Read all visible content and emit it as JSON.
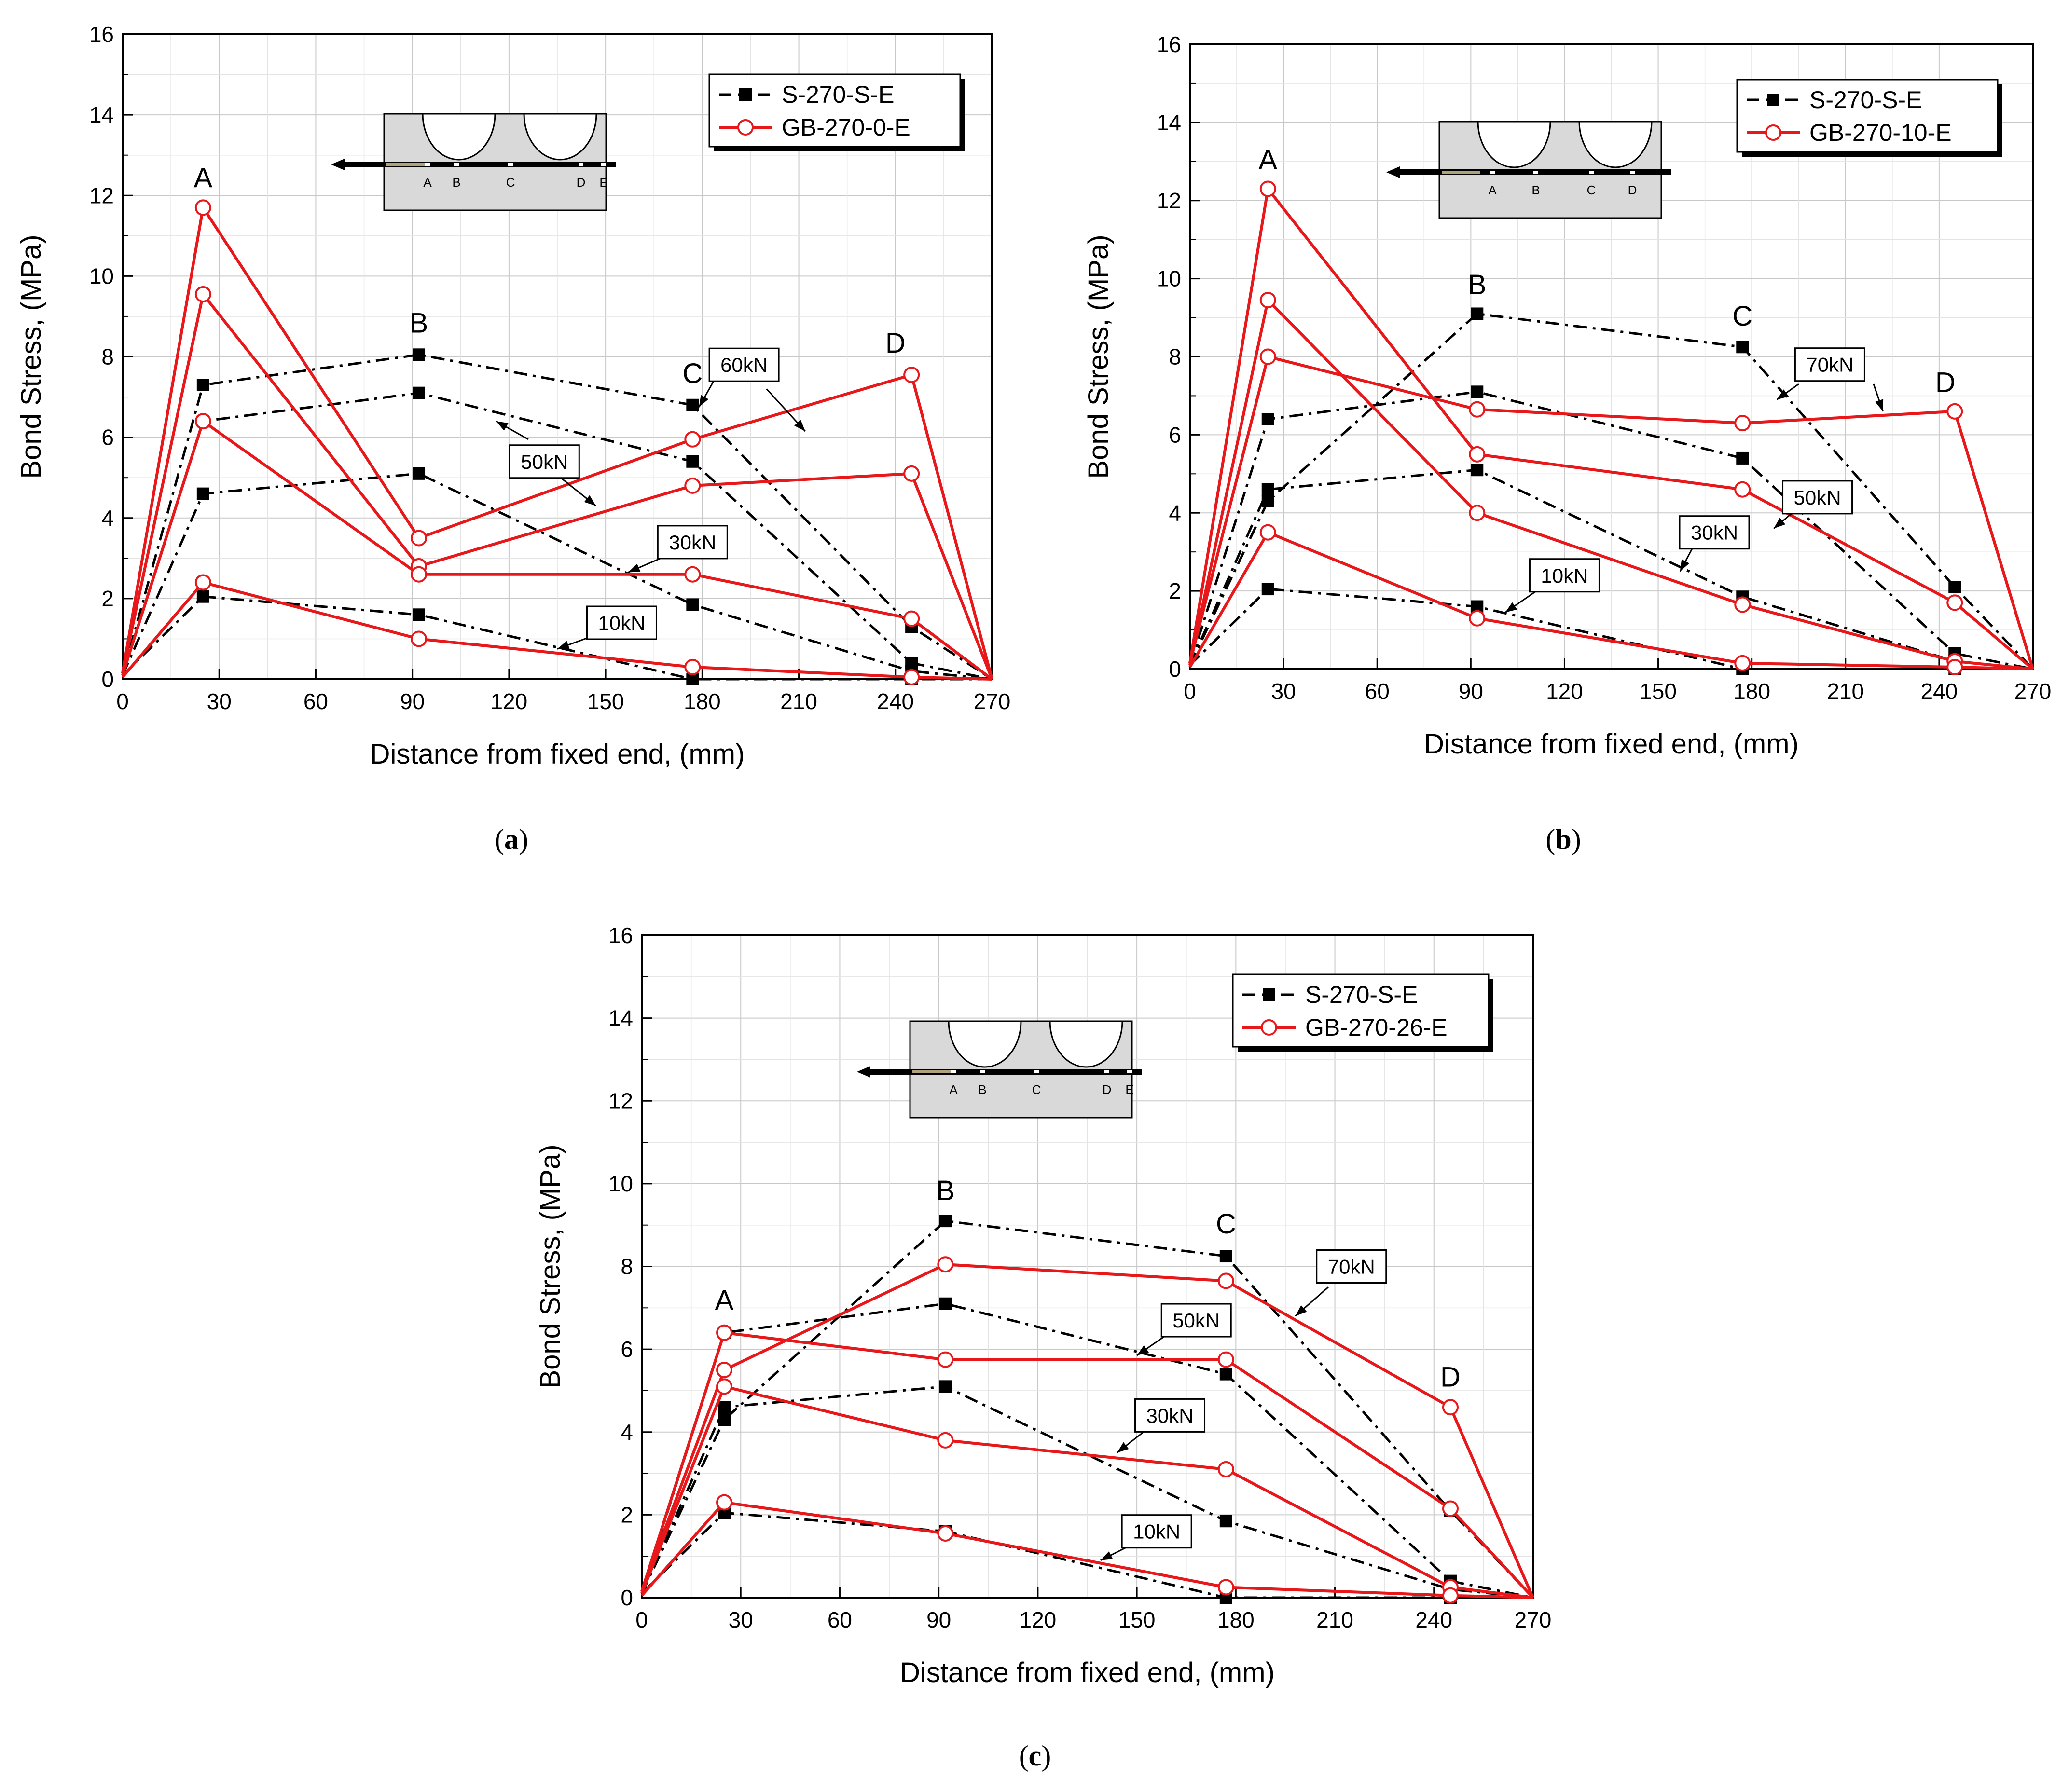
{
  "colors": {
    "reference_series": "#000000",
    "gfrp_series": "#e8171a",
    "grid": "#c8c8c8",
    "inset_fill": "#d9d9d9"
  },
  "chart_data": [
    {
      "panel": "a",
      "type": "line",
      "caption": "a",
      "xlabel": "Distance from fixed end, (mm)",
      "ylabel": "Bond Stress, (MPa)",
      "xlim": [
        0,
        270
      ],
      "ylim": [
        0,
        16
      ],
      "xticks": [
        0,
        30,
        60,
        90,
        120,
        150,
        180,
        210,
        240,
        270
      ],
      "yticks": [
        0,
        2,
        4,
        6,
        8,
        10,
        12,
        14,
        16
      ],
      "grid": true,
      "legend_position": "top-right",
      "legend": [
        "S-270-S-E",
        "GB-270-0-E"
      ],
      "inset_labels": [
        "A",
        "B",
        "C",
        "D",
        "E"
      ],
      "point_labels": [
        {
          "text": "A",
          "x": 25,
          "y": 12.2
        },
        {
          "text": "B",
          "x": 92,
          "y": 8.6
        },
        {
          "text": "C",
          "x": 177,
          "y": 7.35
        },
        {
          "text": "D",
          "x": 240,
          "y": 8.1
        }
      ],
      "annotations": [
        {
          "text": "60kN",
          "x": 193,
          "y": 7.8,
          "arrows": [
            {
              "x1": 185,
              "y1": 7.6,
              "x2": 179,
              "y2": 6.75
            },
            {
              "x1": 200,
              "y1": 7.2,
              "x2": 212,
              "y2": 6.15
            }
          ]
        },
        {
          "text": "50kN",
          "x": 131,
          "y": 5.4,
          "arrows": [
            {
              "x1": 126,
              "y1": 5.95,
              "x2": 116,
              "y2": 6.4
            },
            {
              "x1": 136,
              "y1": 5.0,
              "x2": 147,
              "y2": 4.3
            }
          ]
        },
        {
          "text": "30kN",
          "x": 177,
          "y": 3.4,
          "arrows": [
            {
              "x1": 170,
              "y1": 3.1,
              "x2": 157,
              "y2": 2.65
            }
          ]
        },
        {
          "text": "10kN",
          "x": 155,
          "y": 1.4,
          "arrows": [
            {
              "x1": 147,
              "y1": 1.1,
              "x2": 135,
              "y2": 0.75
            }
          ]
        }
      ],
      "series": [
        {
          "name": "S-270-S-E 60kN",
          "group": "S-270-S-E",
          "x": [
            0,
            25,
            92,
            177,
            245,
            270
          ],
          "y": [
            0.1,
            7.3,
            8.05,
            6.8,
            1.3,
            0
          ]
        },
        {
          "name": "S-270-S-E 50kN",
          "group": "S-270-S-E",
          "x": [
            0,
            25,
            92,
            177,
            245,
            270
          ],
          "y": [
            0.1,
            6.4,
            7.1,
            5.4,
            0.4,
            0
          ]
        },
        {
          "name": "S-270-S-E 30kN",
          "group": "S-270-S-E",
          "x": [
            0,
            25,
            92,
            177,
            245,
            270
          ],
          "y": [
            0.1,
            4.6,
            5.1,
            1.85,
            0.2,
            0
          ]
        },
        {
          "name": "S-270-S-E 10kN",
          "group": "S-270-S-E",
          "x": [
            0,
            25,
            92,
            177,
            245,
            270
          ],
          "y": [
            0.1,
            2.05,
            1.6,
            0,
            0,
            0
          ]
        },
        {
          "name": "GB-270-0-E 60kN",
          "group": "GB-270-0-E",
          "x": [
            0,
            25,
            92,
            177,
            245,
            270
          ],
          "y": [
            0.15,
            11.7,
            3.5,
            5.95,
            7.55,
            0
          ]
        },
        {
          "name": "GB-270-0-E 50kN",
          "group": "GB-270-0-E",
          "x": [
            0,
            25,
            92,
            177,
            245,
            270
          ],
          "y": [
            0.15,
            9.55,
            2.8,
            4.8,
            5.1,
            0
          ]
        },
        {
          "name": "GB-270-0-E 30kN",
          "group": "GB-270-0-E",
          "x": [
            0,
            25,
            92,
            177,
            245,
            270
          ],
          "y": [
            0.1,
            6.4,
            2.6,
            2.6,
            1.5,
            0
          ]
        },
        {
          "name": "GB-270-0-E 10kN",
          "group": "GB-270-0-E",
          "x": [
            0,
            25,
            92,
            177,
            245,
            270
          ],
          "y": [
            0.05,
            2.4,
            1.0,
            0.3,
            0.05,
            0
          ]
        }
      ]
    },
    {
      "panel": "b",
      "type": "line",
      "caption": "b",
      "xlabel": "Distance from fixed end, (mm)",
      "ylabel": "Bond Stress, (MPa)",
      "xlim": [
        0,
        270
      ],
      "ylim": [
        0,
        16
      ],
      "xticks": [
        0,
        30,
        60,
        90,
        120,
        150,
        180,
        210,
        240,
        270
      ],
      "yticks": [
        0,
        2,
        4,
        6,
        8,
        10,
        12,
        14,
        16
      ],
      "grid": true,
      "legend_position": "top-right",
      "legend": [
        "S-270-S-E",
        "GB-270-10-E"
      ],
      "inset_labels": [
        "A",
        "B",
        "C",
        "D"
      ],
      "point_labels": [
        {
          "text": "A",
          "x": 25,
          "y": 12.8
        },
        {
          "text": "B",
          "x": 92,
          "y": 9.6
        },
        {
          "text": "C",
          "x": 177,
          "y": 8.8
        },
        {
          "text": "D",
          "x": 242,
          "y": 7.1
        }
      ],
      "annotations": [
        {
          "text": "70kN",
          "x": 205,
          "y": 7.8,
          "arrows": [
            {
              "x1": 195,
              "y1": 7.3,
              "x2": 188,
              "y2": 6.9
            },
            {
              "x1": 219,
              "y1": 7.3,
              "x2": 222,
              "y2": 6.6
            }
          ]
        },
        {
          "text": "50kN",
          "x": 201,
          "y": 4.4,
          "arrows": [
            {
              "x1": 193,
              "y1": 4.0,
              "x2": 187,
              "y2": 3.6
            }
          ]
        },
        {
          "text": "30kN",
          "x": 168,
          "y": 3.5,
          "arrows": [
            {
              "x1": 161,
              "y1": 3.1,
              "x2": 157,
              "y2": 2.5
            }
          ]
        },
        {
          "text": "10kN",
          "x": 120,
          "y": 2.4,
          "arrows": [
            {
              "x1": 111,
              "y1": 2.0,
              "x2": 101,
              "y2": 1.45
            }
          ]
        }
      ],
      "series": [
        {
          "name": "S-270-S-E 70kN",
          "group": "S-270-S-E",
          "x": [
            0,
            25,
            92,
            177,
            245,
            270
          ],
          "y": [
            0.1,
            4.3,
            9.1,
            8.25,
            2.1,
            0
          ]
        },
        {
          "name": "S-270-S-E 50kN",
          "group": "S-270-S-E",
          "x": [
            0,
            25,
            92,
            177,
            245,
            270
          ],
          "y": [
            0.1,
            6.4,
            7.1,
            5.4,
            0.4,
            0
          ]
        },
        {
          "name": "S-270-S-E 30kN",
          "group": "S-270-S-E",
          "x": [
            0,
            25,
            92,
            177,
            245,
            270
          ],
          "y": [
            0.1,
            4.6,
            5.1,
            1.85,
            0.2,
            0
          ]
        },
        {
          "name": "S-270-S-E 10kN",
          "group": "S-270-S-E",
          "x": [
            0,
            25,
            92,
            177,
            245,
            270
          ],
          "y": [
            0.1,
            2.05,
            1.6,
            0,
            0,
            0
          ]
        },
        {
          "name": "GB-270-10-E 70kN",
          "group": "GB-270-10-E",
          "x": [
            0,
            25,
            92,
            177,
            245,
            270
          ],
          "y": [
            0.15,
            8.0,
            6.65,
            6.3,
            6.6,
            0
          ]
        },
        {
          "name": "GB-270-10-E 50kN",
          "group": "GB-270-10-E",
          "x": [
            0,
            25,
            92,
            177,
            245,
            270
          ],
          "y": [
            0.15,
            12.3,
            5.5,
            4.6,
            1.7,
            0
          ]
        },
        {
          "name": "GB-270-10-E 30kN",
          "group": "GB-270-10-E",
          "x": [
            0,
            25,
            92,
            177,
            245,
            270
          ],
          "y": [
            0.1,
            9.45,
            4.0,
            1.65,
            0.2,
            0
          ]
        },
        {
          "name": "GB-270-10-E 10kN",
          "group": "GB-270-10-E",
          "x": [
            0,
            25,
            92,
            177,
            245,
            270
          ],
          "y": [
            0.05,
            3.5,
            1.3,
            0.15,
            0.05,
            0
          ]
        }
      ]
    },
    {
      "panel": "c",
      "type": "line",
      "caption": "c",
      "xlabel": "Distance from fixed end, (mm)",
      "ylabel": "Bond Stress, (MPa)",
      "xlim": [
        0,
        270
      ],
      "ylim": [
        0,
        16
      ],
      "xticks": [
        0,
        30,
        60,
        90,
        120,
        150,
        180,
        210,
        240,
        270
      ],
      "yticks": [
        0,
        2,
        4,
        6,
        8,
        10,
        12,
        14,
        16
      ],
      "grid": true,
      "legend_position": "top-right",
      "legend": [
        "S-270-S-E",
        "GB-270-26-E"
      ],
      "inset_labels": [
        "A",
        "B",
        "C",
        "D",
        "E"
      ],
      "point_labels": [
        {
          "text": "A",
          "x": 25,
          "y": 6.95
        },
        {
          "text": "B",
          "x": 92,
          "y": 9.6
        },
        {
          "text": "C",
          "x": 177,
          "y": 8.8
        },
        {
          "text": "D",
          "x": 245,
          "y": 5.1
        }
      ],
      "annotations": [
        {
          "text": "70kN",
          "x": 215,
          "y": 8.0,
          "arrows": [
            {
              "x1": 208,
              "y1": 7.5,
              "x2": 198,
              "y2": 6.8
            }
          ]
        },
        {
          "text": "50kN",
          "x": 168,
          "y": 6.7,
          "arrows": [
            {
              "x1": 160,
              "y1": 6.4,
              "x2": 150,
              "y2": 5.85
            }
          ]
        },
        {
          "text": "30kN",
          "x": 160,
          "y": 4.4,
          "arrows": [
            {
              "x1": 152,
              "y1": 4.0,
              "x2": 144,
              "y2": 3.5
            }
          ]
        },
        {
          "text": "10kN",
          "x": 156,
          "y": 1.6,
          "arrows": [
            {
              "x1": 149,
              "y1": 1.3,
              "x2": 139,
              "y2": 0.9
            }
          ]
        }
      ],
      "series": [
        {
          "name": "S-270-S-E 70kN",
          "group": "S-270-S-E",
          "x": [
            0,
            25,
            92,
            177,
            245,
            270
          ],
          "y": [
            0.1,
            4.3,
            9.1,
            8.25,
            2.1,
            0
          ]
        },
        {
          "name": "S-270-S-E 50kN",
          "group": "S-270-S-E",
          "x": [
            0,
            25,
            92,
            177,
            245,
            270
          ],
          "y": [
            0.1,
            6.4,
            7.1,
            5.4,
            0.4,
            0
          ]
        },
        {
          "name": "S-270-S-E 30kN",
          "group": "S-270-S-E",
          "x": [
            0,
            25,
            92,
            177,
            245,
            270
          ],
          "y": [
            0.1,
            4.6,
            5.1,
            1.85,
            0.2,
            0
          ]
        },
        {
          "name": "S-270-S-E 10kN",
          "group": "S-270-S-E",
          "x": [
            0,
            25,
            92,
            177,
            245,
            270
          ],
          "y": [
            0.1,
            2.05,
            1.6,
            0,
            0,
            0
          ]
        },
        {
          "name": "GB-270-26-E 70kN",
          "group": "GB-270-26-E",
          "x": [
            0,
            25,
            92,
            177,
            245,
            270
          ],
          "y": [
            0.15,
            5.5,
            8.05,
            7.65,
            4.6,
            0
          ]
        },
        {
          "name": "GB-270-26-E 50kN",
          "group": "GB-270-26-E",
          "x": [
            0,
            25,
            92,
            177,
            245,
            270
          ],
          "y": [
            0.15,
            6.4,
            5.75,
            5.75,
            2.15,
            0
          ]
        },
        {
          "name": "GB-270-26-E 30kN",
          "group": "GB-270-26-E",
          "x": [
            0,
            25,
            92,
            177,
            245,
            270
          ],
          "y": [
            0.1,
            5.1,
            3.8,
            3.1,
            0.25,
            0
          ]
        },
        {
          "name": "GB-270-26-E 10kN",
          "group": "GB-270-26-E",
          "x": [
            0,
            25,
            92,
            177,
            245,
            270
          ],
          "y": [
            0.05,
            2.3,
            1.55,
            0.25,
            0.05,
            0
          ]
        }
      ]
    }
  ]
}
